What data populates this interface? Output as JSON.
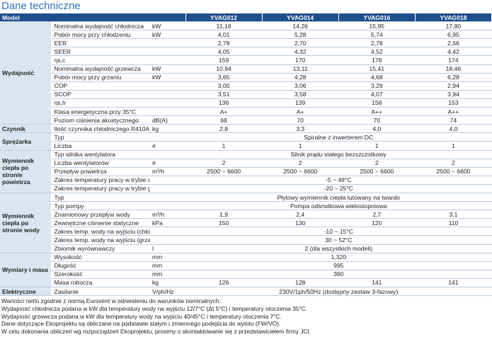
{
  "title": "Dane techniczne",
  "table": {
    "header": [
      "Model",
      "YVAG012",
      "YVAG014",
      "YVAG016",
      "YVAG018"
    ],
    "groups": [
      {
        "label": "Wydajność",
        "rows": [
          {
            "param": "Nominalna wydajność chłodnicza",
            "unit": "kW",
            "values": [
              "11,18",
              "14,26",
              "15,95",
              "17,80"
            ]
          },
          {
            "param": "Pobór mocy przy chłodzeniu",
            "unit": "kW",
            "values": [
              "4,01",
              "5,28",
              "5,74",
              "6,95"
            ]
          },
          {
            "param": "EER",
            "values": [
              "2,79",
              "2,70",
              "2,78",
              "2,56"
            ]
          },
          {
            "param": "SEER",
            "values": [
              "4,05",
              "4,32",
              "4,52",
              "4,42"
            ]
          },
          {
            "param": "ηs,c",
            "values": [
              "159",
              "170",
              "178",
              "174"
            ]
          },
          {
            "param": "Nominalna wydajność grzewcza",
            "unit": "kW",
            "values": [
              "10,94",
              "13,11",
              "15,41",
              "18,46"
            ]
          },
          {
            "param": "Pobór mocy przy grzaniu",
            "unit": "kW",
            "values": [
              "3,65",
              "4,28",
              "4,68",
              "6,28"
            ]
          },
          {
            "param": "COP",
            "values": [
              "3,00",
              "3,06",
              "3,29",
              "2,94"
            ]
          },
          {
            "param": "SCOP",
            "values": [
              "3,51",
              "3,58",
              "4,07",
              "3,94"
            ]
          },
          {
            "param": "ηs,h",
            "values": [
              "136",
              "139",
              "158",
              "153"
            ]
          },
          {
            "param": "Klasa energetyczna przy 35°C",
            "values": [
              "A+",
              "A+",
              "A++",
              "A++"
            ]
          },
          {
            "param": "Poziom ciśnienia akustycznego",
            "unit": "dB(A)",
            "values": [
              "68",
              "70",
              "70",
              "74"
            ]
          }
        ]
      },
      {
        "label": "Czynnik",
        "rows": [
          {
            "param": "Ilość czynnika chłodniczego R410A",
            "unit": "kg",
            "values": [
              "2,8",
              "3,3",
              "4,0",
              "4,0"
            ]
          }
        ]
      },
      {
        "label": "Sprężarka",
        "rows": [
          {
            "param": "Typ",
            "span": "Spiralne z inwerterem DC"
          },
          {
            "param": "Liczba",
            "unit": "#",
            "values": [
              "1",
              "1",
              "1",
              "1"
            ]
          }
        ]
      },
      {
        "label": "Wymiennik ciepła po stronie powietrza",
        "rows": [
          {
            "param": "Typ silnika wentylatora",
            "span": "Silnik prądu stałego bezszczotkowy"
          },
          {
            "param": "Liczba wentylatorów",
            "unit": "#",
            "values": [
              "2",
              "2",
              "2",
              "2"
            ]
          },
          {
            "param": "Przepływ powietrza",
            "unit": "m³/h",
            "values": [
              "2500 ~ 6600",
              "2500 ~ 6600",
              "2500 ~ 6600",
              "2500 ~ 6600"
            ]
          },
          {
            "param": "Zakres temperatury pracy w trybie chłodzenia",
            "span": "-5 ~ 48°C"
          },
          {
            "param": "Zakres temperatury pracy w trybie grzania",
            "span": "-20 ~ 25°C"
          }
        ]
      },
      {
        "label": "Wymiennik ciepła po stronie wody",
        "rows": [
          {
            "param": "Typ",
            "span": "Płytowy wymiennik ciepła lutowany na twardo"
          },
          {
            "param": "Typ pompy",
            "span": "Pompa odśrodkowa wielostopniowa"
          },
          {
            "param": "Znamionowy przepływ wody",
            "unit": "m³/h",
            "values": [
              "1,9",
              "2,4",
              "2,7",
              "3,1"
            ]
          },
          {
            "param": "Zewnętrzne ciśnienie statyczne",
            "unit": "kPa",
            "values": [
              "150",
              "130",
              "120",
              "110"
            ]
          },
          {
            "param": "Zakres temp. wody na wyjściu (chłodzenie)",
            "span": "-10 ~ 15°C"
          },
          {
            "param": "Zakres temp. wody na wyjściu (grzanie)",
            "span": "30 ~ 52°C"
          },
          {
            "param": "Zbiornik wyrównawczy",
            "unit": "l",
            "span": "2 (dla wszystkich modeli)"
          }
        ]
      },
      {
        "label": "Wymiary i masa",
        "rows": [
          {
            "param": "Wysokość",
            "unit": "mm",
            "span": "1,320"
          },
          {
            "param": "Długość",
            "unit": "mm",
            "span": "995"
          },
          {
            "param": "Szerokość",
            "unit": "mm",
            "span": "360"
          },
          {
            "param": "Masa robocza",
            "unit": "kg",
            "values": [
              "126",
              "128",
              "141",
              "141"
            ]
          }
        ]
      },
      {
        "label": "Elektryczne",
        "rows": [
          {
            "param": "Zasilanie",
            "unit": "V/ph/Hz",
            "span": "230V/1ph/50Hz (dostępny zestaw 3-fazowy)"
          }
        ]
      }
    ]
  },
  "notes": [
    "Wartości netto zgodnie z normą Eurovent w odniesieniu do warunków nominalnych:",
    "Wydajność chłodnicza podana w kW dla temperatury wody na wyjściu 12/7°C (Δt 5°C) i temperatury otoczenia 35°C.",
    "Wydajność grzewcza podana w kW dla temperatury wody na wyjściu 40/45°C i temperatury otoczenia 7°C.",
    "Dane dotyczące Ekoprojektu są obliczane na podstawie stałym i zmiennego podejścia do wylotu (FW/VO).",
    "W celu dokonania obliczeń wg rozporządzeń Ekoprojektu, prosimy o skontaktowanie się z przedstawicielem firmy JCI."
  ]
}
